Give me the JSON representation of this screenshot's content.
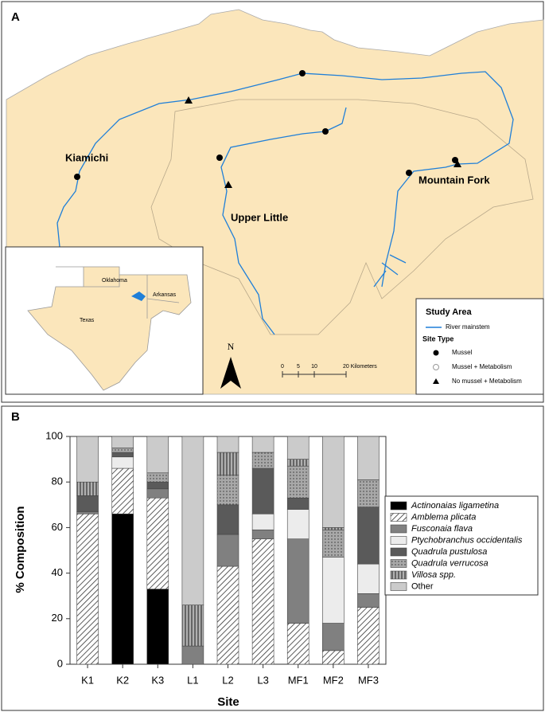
{
  "map": {
    "label": "A",
    "rivers": [
      "Kiamichi",
      "Upper Little",
      "Mountain Fork"
    ],
    "states": [
      "Oklahoma",
      "Arkansas",
      "Texas"
    ],
    "legend": {
      "title": "Study Area",
      "river": "River mainstem",
      "site_type": "Site Type",
      "sites": [
        "Mussel",
        "Mussel + Metabolism",
        "No mussel + Metabolism"
      ]
    },
    "north": "N",
    "scale": [
      "0",
      "5",
      "10",
      "20 Kilometers"
    ]
  },
  "chart_data": {
    "type": "stacked_bar",
    "title": "B",
    "x_label": "Site",
    "y_label": "% Composition",
    "categories": [
      "K1",
      "K2",
      "K3",
      "L1",
      "L2",
      "L3",
      "MF1",
      "MF2",
      "MF3"
    ],
    "ylim": [
      0,
      100
    ],
    "yticks": [
      0,
      20,
      40,
      60,
      80,
      100
    ],
    "series": [
      {
        "name": "Actinonaias ligametina",
        "color": "#000000",
        "values": [
          0,
          66,
          33,
          0,
          0,
          0,
          0,
          0,
          0
        ]
      },
      {
        "name": "Amblema plicata",
        "color": "#ffffff",
        "pattern": "diagonal",
        "values": [
          66,
          20,
          40,
          0,
          43,
          55,
          18,
          6,
          25
        ]
      },
      {
        "name": "Fusconaia flava",
        "color": "#808080",
        "values": [
          1,
          0,
          4,
          8,
          14,
          4,
          37,
          12,
          6
        ]
      },
      {
        "name": "Ptychobranchus occidentalis",
        "color": "#ececec",
        "values": [
          0,
          5,
          0,
          0,
          0,
          7,
          13,
          29,
          13
        ]
      },
      {
        "name": "Quadrula pustulosa",
        "color": "#5a5a5a",
        "values": [
          7,
          2,
          3,
          0,
          13,
          20,
          5,
          0,
          25
        ]
      },
      {
        "name": "Quadrula verrucosa",
        "color": "#a8a8a8",
        "pattern": "dots",
        "values": [
          0,
          2,
          4,
          0,
          13,
          7,
          14,
          12,
          12
        ]
      },
      {
        "name": "Villosa spp.",
        "color": "#b0b0b0",
        "pattern": "vertical",
        "values": [
          6,
          0,
          0,
          18,
          10,
          0,
          3,
          1,
          0
        ]
      },
      {
        "name": "Other",
        "color": "#cbcbcb",
        "values": [
          20,
          5,
          16,
          74,
          7,
          7,
          10,
          40,
          19
        ]
      }
    ]
  }
}
